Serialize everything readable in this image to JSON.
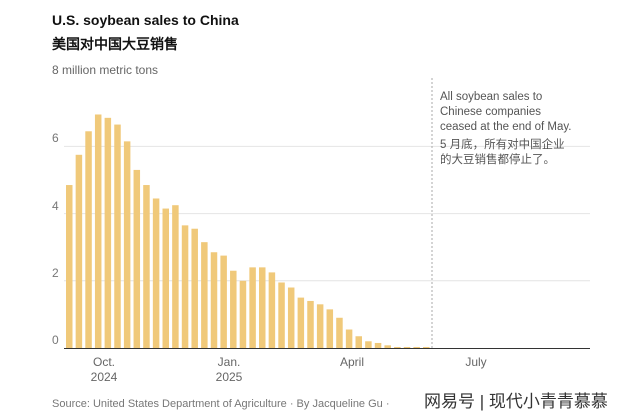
{
  "chart_data": {
    "type": "bar",
    "title": "U.S. soybean sales to China",
    "subtitle": "美国对中国大豆销售",
    "ylabel": "8 million metric tons",
    "ylim": [
      0,
      8
    ],
    "yticks": [
      "0",
      "2",
      "4",
      "6"
    ],
    "xticks": [
      {
        "label": "Oct.",
        "sub": "2024"
      },
      {
        "label": "Jan.",
        "sub": "2025"
      },
      {
        "label": "April",
        "sub": ""
      },
      {
        "label": "July",
        "sub": ""
      }
    ],
    "grid": true,
    "color": "#f0c97a",
    "values": [
      4.85,
      5.75,
      6.45,
      6.95,
      6.85,
      6.65,
      6.15,
      5.3,
      4.85,
      4.45,
      4.15,
      4.25,
      3.65,
      3.55,
      3.15,
      2.85,
      2.75,
      2.3,
      2.0,
      2.4,
      2.4,
      2.25,
      1.95,
      1.8,
      1.5,
      1.4,
      1.3,
      1.15,
      0.9,
      0.55,
      0.35,
      0.2,
      0.15,
      0.08,
      0.03,
      0.03,
      0.03,
      0.03
    ],
    "annotation": {
      "en": [
        "All soybean sales to",
        "Chinese companies",
        "ceased at the end of May."
      ],
      "zh": [
        "5 月底，所有对中国企业",
        "的大豆销售都停止了。"
      ]
    }
  },
  "source": "Source: United States Department of Agriculture  ·  By Jacqueline Gu  ·",
  "watermark": "网易号 | 现代小青青慕慕"
}
